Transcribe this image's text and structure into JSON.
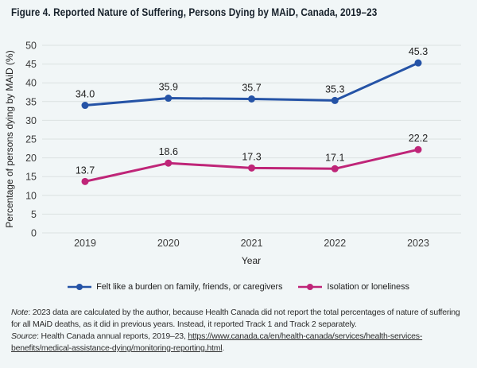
{
  "chart_data": {
    "type": "line",
    "title": "Figure 4. Reported Nature of Suffering, Persons Dying by MAiD, Canada, 2019–23",
    "x": [
      "2019",
      "2020",
      "2021",
      "2022",
      "2023"
    ],
    "series": [
      {
        "name": "Felt like a burden on family, friends, or caregivers",
        "color": "#2553a6",
        "values": [
          34.0,
          35.9,
          35.7,
          35.3,
          45.3
        ]
      },
      {
        "name": "Isolation or loneliness",
        "color": "#bf2578",
        "values": [
          13.7,
          18.6,
          17.3,
          17.1,
          22.2
        ]
      }
    ],
    "xlabel": "Year",
    "ylabel": "Percentage of persons dying by MAiD (%)",
    "ylim": [
      0,
      50
    ],
    "ytick_step": 5,
    "grid": true,
    "legend_position": "bottom"
  },
  "colors": {
    "background": "#f1f6f7",
    "gridline": "#dbe1e1",
    "title_text": "#17212b",
    "label_text": "#1d1d1d"
  },
  "notes": {
    "note_label": "Note",
    "note_text": ": 2023 data are calculated by the author, because Health Canada did not report the total percentages of nature of suffering for all MAiD deaths, as it did in previous years. Instead, it reported Track 1 and Track 2 separately.",
    "source_label": "Source",
    "source_text": ": Health Canada annual reports, 2019–23, ",
    "link_text": "https://www.canada.ca/en/health-canada/services/health-services-benefits/medical-assistance-dying/monitoring-reporting.html",
    "source_suffix": "."
  }
}
